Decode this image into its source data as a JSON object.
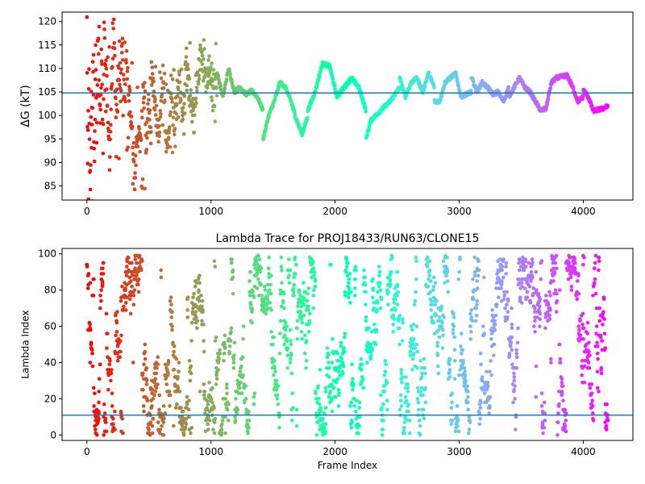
{
  "chart_data": [
    {
      "type": "scatter",
      "title": "",
      "xlabel": "",
      "ylabel": "ΔG (kT)",
      "xlim": [
        -200,
        4400
      ],
      "ylim": [
        82,
        122
      ],
      "xticks": [
        0,
        1000,
        2000,
        3000,
        4000
      ],
      "yticks": [
        85,
        90,
        95,
        100,
        105,
        110,
        115,
        120
      ],
      "hline": 104.8,
      "hline_color": "#1f77b4",
      "colormap": "rainbow (frame index mapped high→low: red at frame 0, purple at frame 4200)",
      "x_extent": [
        0,
        4200
      ],
      "segments": [
        {
          "x0": 0,
          "x1": 50,
          "values": [
            120,
            90,
            100,
            110,
            92,
            83,
            103,
            100,
            95,
            120
          ]
        },
        {
          "x0": 50,
          "x1": 150,
          "values": [
            110,
            87,
            114,
            95,
            118,
            106,
            100,
            112,
            93,
            120,
            104
          ]
        },
        {
          "x0": 150,
          "x1": 320,
          "values": [
            113,
            102,
            90,
            108,
            120,
            98,
            111,
            104,
            116,
            100,
            112
          ]
        },
        {
          "x0": 320,
          "x1": 520,
          "values": [
            112,
            105,
            96,
            85,
            99,
            93,
            107,
            94,
            101,
            96
          ]
        },
        {
          "x0": 520,
          "x1": 800,
          "values": [
            109,
            101,
            96,
            106,
            93,
            104,
            98,
            108,
            100,
            110
          ]
        },
        {
          "x0": 800,
          "x1": 1050,
          "values": [
            111,
            104,
            99,
            108,
            115,
            106,
            110,
            103,
            109
          ]
        },
        {
          "x0": 1050,
          "x1": 1420,
          "values": [
            109,
            104,
            110,
            105,
            106,
            104.5,
            105.2,
            104,
            101
          ]
        },
        {
          "x0": 1420,
          "x1": 1780,
          "values": [
            95,
            100,
            103,
            107,
            106,
            103,
            99,
            96,
            100
          ]
        },
        {
          "x0": 1780,
          "x1": 2250,
          "values": [
            101,
            105,
            111,
            110.5,
            104,
            106,
            108,
            106,
            101
          ]
        },
        {
          "x0": 2250,
          "x1": 2520,
          "values": [
            95,
            99,
            100,
            101,
            102,
            103,
            104.5,
            106
          ]
        },
        {
          "x0": 2520,
          "x1": 2800,
          "values": [
            108,
            104,
            107,
            108,
            105,
            109,
            106
          ]
        },
        {
          "x0": 2800,
          "x1": 3100,
          "values": [
            103,
            103,
            107,
            108,
            109,
            104,
            104.5,
            105
          ]
        },
        {
          "x0": 3100,
          "x1": 3400,
          "values": [
            108,
            105,
            107,
            106,
            104.5,
            105,
            103,
            106
          ]
        },
        {
          "x0": 3400,
          "x1": 3700,
          "values": [
            104,
            106,
            108,
            106,
            105,
            103,
            101,
            101.5
          ]
        },
        {
          "x0": 3700,
          "x1": 4000,
          "values": [
            101.5,
            107,
            108,
            108.3,
            108.5,
            106,
            103,
            104
          ]
        },
        {
          "x0": 4000,
          "x1": 4200,
          "values": [
            105.5,
            104,
            101,
            101.2,
            101.5,
            102
          ]
        }
      ]
    },
    {
      "type": "scatter",
      "title": "Lambda Trace for PROJ18433/RUN63/CLONE15",
      "xlabel": "Frame Index",
      "ylabel": "Lambda Index",
      "xlim": [
        -200,
        4400
      ],
      "ylim": [
        -3,
        103
      ],
      "xticks": [
        0,
        1000,
        2000,
        3000,
        4000
      ],
      "yticks": [
        0,
        20,
        40,
        60,
        80,
        100
      ],
      "hline": 11,
      "hline_color": "#1f77b4",
      "colormap": "rainbow (frame index mapped high→low: red at frame 0, purple at frame 4200)",
      "x_extent": [
        0,
        4200
      ],
      "value_range": [
        0,
        99
      ],
      "notes": "dense random walk spanning all lambda values"
    }
  ],
  "axis_labels": {
    "x_tick_labels": [
      "0",
      "1000",
      "2000",
      "3000",
      "4000"
    ],
    "top_y_tick_labels": [
      "85",
      "90",
      "95",
      "100",
      "105",
      "110",
      "115",
      "120"
    ],
    "bottom_y_tick_labels": [
      "0",
      "20",
      "40",
      "60",
      "80",
      "100"
    ]
  }
}
